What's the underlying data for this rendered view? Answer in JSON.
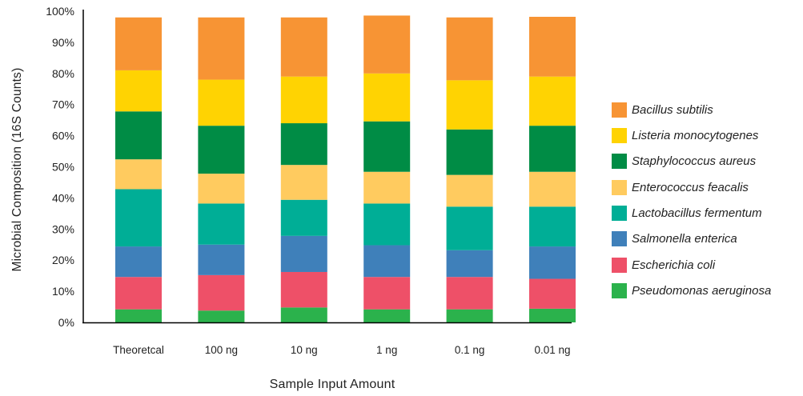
{
  "chart_data": {
    "type": "bar",
    "stacked": true,
    "xlabel": "Sample Input Amount",
    "ylabel": "Microbial Composition (16S Counts)",
    "ylim": [
      0,
      100
    ],
    "yticks": [
      "0%",
      "10%",
      "20%",
      "30%",
      "40%",
      "50%",
      "60%",
      "70%",
      "80%",
      "90%",
      "100%"
    ],
    "categories": [
      "Theoretcal",
      "100 ng",
      "10 ng",
      "1 ng",
      "0.1 ng",
      "0.01 ng"
    ],
    "grid": false,
    "legend_position": "right",
    "series": [
      {
        "name": "Pseudomonas aeruginosa",
        "color": "#2BB24C",
        "values": [
          4.2,
          3.8,
          4.8,
          4.2,
          4.2,
          4.4
        ]
      },
      {
        "name": "Escherichia coli",
        "color": "#EE5068",
        "values": [
          10.4,
          11.4,
          11.4,
          10.4,
          10.4,
          9.6
        ]
      },
      {
        "name": "Salmonella enterica",
        "color": "#3F80BA",
        "values": [
          9.8,
          9.8,
          11.6,
          10.2,
          8.6,
          10.4
        ]
      },
      {
        "name": "Lactobacillus fermentum",
        "color": "#00AE96",
        "values": [
          18.4,
          13.2,
          11.6,
          13.4,
          14.0,
          12.8
        ]
      },
      {
        "name": "Enterococcus feacalis",
        "color": "#FFCB5F",
        "values": [
          9.6,
          9.6,
          11.2,
          10.2,
          10.2,
          11.2
        ]
      },
      {
        "name": "Staphylococcus aureus",
        "color": "#008C45",
        "values": [
          15.4,
          15.4,
          13.4,
          16.2,
          14.6,
          14.8
        ]
      },
      {
        "name": "Listeria monocytogenes",
        "color": "#FFD302",
        "values": [
          13.2,
          14.8,
          15.0,
          15.4,
          15.8,
          15.8
        ]
      },
      {
        "name": "Bacillus subtilis",
        "color": "#F79434",
        "values": [
          17.0,
          20.0,
          19.0,
          18.6,
          20.2,
          19.2
        ]
      }
    ]
  }
}
